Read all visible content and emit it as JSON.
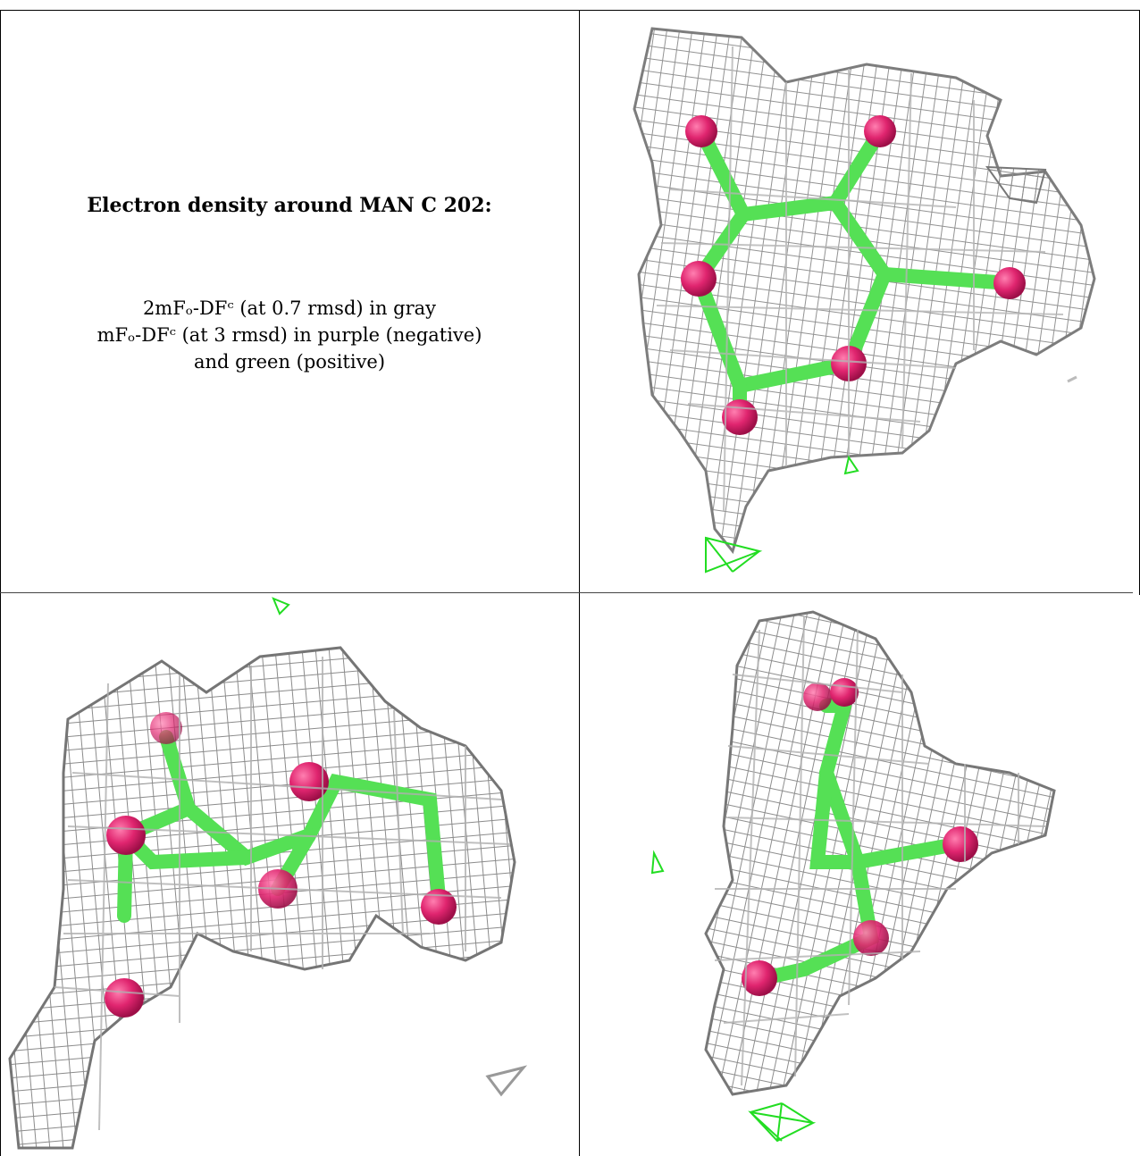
{
  "caption": {
    "title": "Electron density around MAN C 202:",
    "line1": "2mFₒ-DFᶜ (at 0.7 rmsd) in gray",
    "line2": "mFₒ-DFᶜ (at 3 rmsd) in purple (negative)",
    "line3": "and green (positive)"
  },
  "colors": {
    "mesh_gray": "#8a8a8a",
    "mesh_light": "#c8c8c8",
    "bond_green": "#55e055",
    "atom_pink": "#e0256f",
    "diff_green": "#22dd22"
  },
  "panels": [
    {
      "name": "view-1",
      "description_icon": "electron-density-mesh-icon"
    },
    {
      "name": "view-2",
      "description_icon": "electron-density-mesh-icon"
    },
    {
      "name": "view-3",
      "description_icon": "electron-density-mesh-icon"
    }
  ]
}
